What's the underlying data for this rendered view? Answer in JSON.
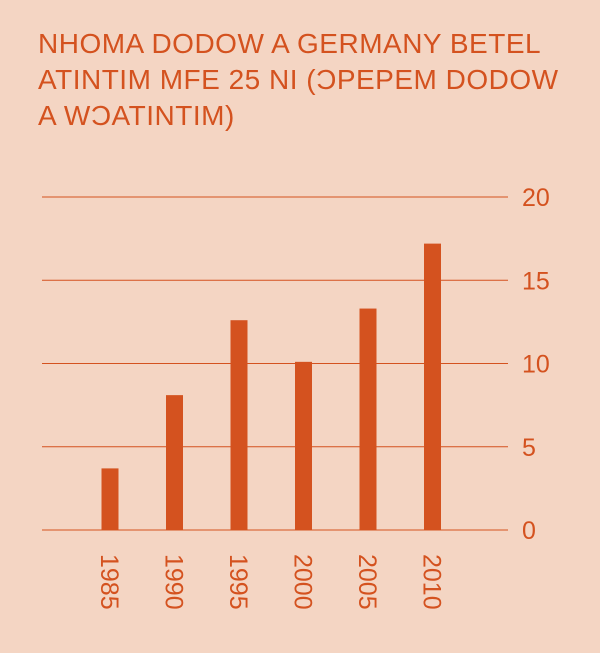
{
  "chart_data": {
    "type": "bar",
    "title": "NHOMA DODOW A GERMANY BETEL ATINTIM MFE 25 NI (ƆPEPEM DODOW A WƆATINTIM)",
    "categories": [
      "1985",
      "1990",
      "1995",
      "2000",
      "2005",
      "2010"
    ],
    "values": [
      3.7,
      8.1,
      12.6,
      10.1,
      13.3,
      17.2
    ],
    "ylim": [
      0,
      20
    ],
    "yticks": [
      0,
      5,
      10,
      15,
      20
    ],
    "y_axis_side": "right",
    "xlabel": "",
    "ylabel": "",
    "grid": true,
    "bar_color": "#d4521f",
    "grid_color": "#d4521f",
    "text_color": "#d4521f",
    "background": "#f4d5c3"
  }
}
